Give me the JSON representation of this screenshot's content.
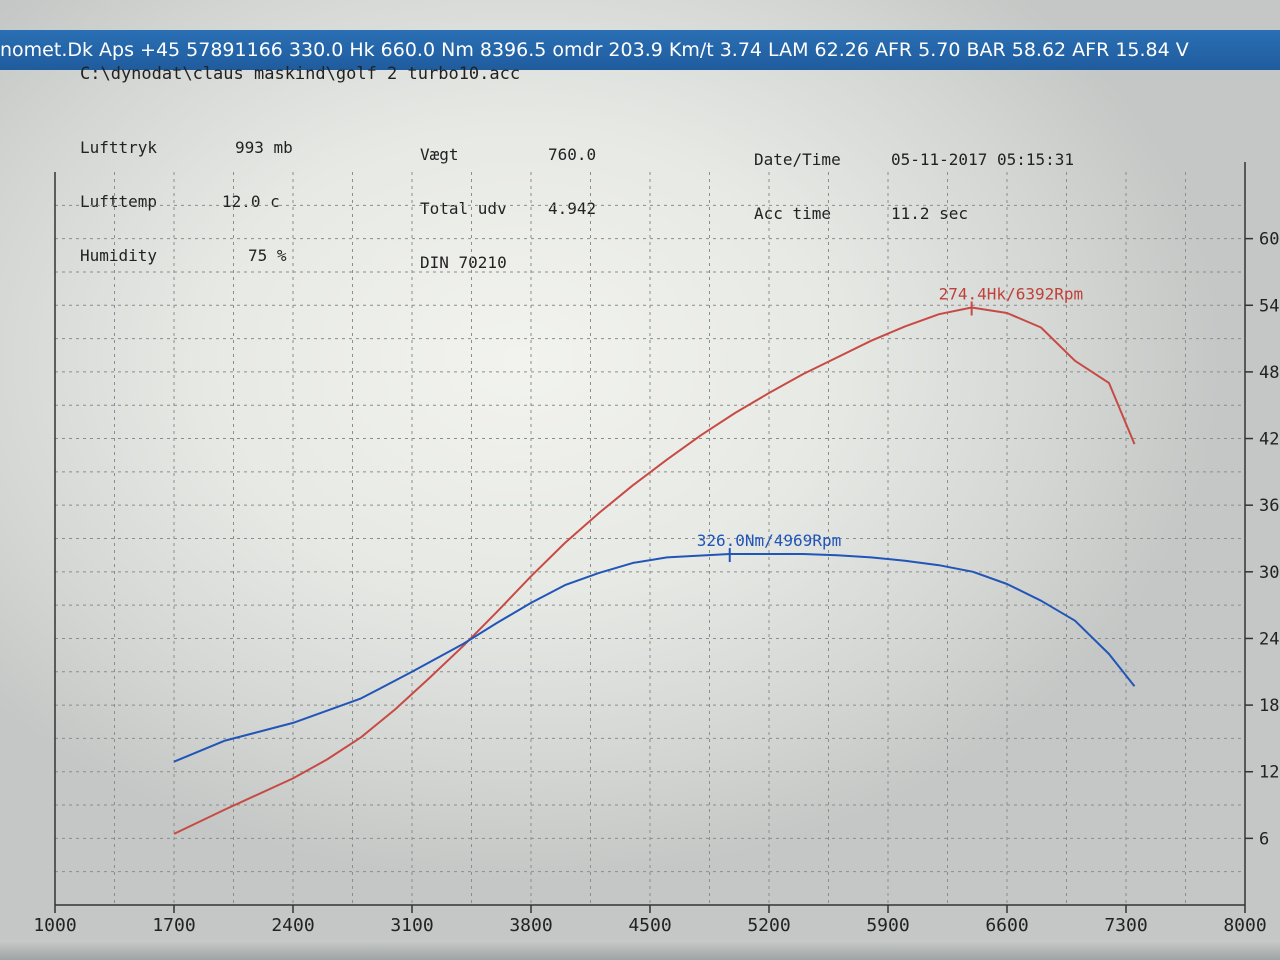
{
  "header": {
    "status_text": "nomet.Dk Aps +45 57891166  330.0 Hk 660.0 Nm 8396.5 omdr 203.9 Km/t   3.74 LAM 62.26 AFR 5.70 BAR 58.62 AFR 15.84 V",
    "file_path": "C:\\dynodat\\claus maskind\\golf 2 turbo10.acc"
  },
  "info": {
    "lufttryk_label": "Lufttryk",
    "lufttryk_value": "993 mb",
    "lufttemp_label": "Lufttemp",
    "lufttemp_value": "12.0 c",
    "humidity_label": "Humidity",
    "humidity_value": "75 %",
    "vaegt_label": "Vægt",
    "vaegt_value": "760.0",
    "total_udv_label": "Total udv",
    "total_udv_value": "4.942",
    "din_text": "DIN 70210",
    "datetime_label": "Date/Time",
    "datetime_value": "05-11-2017 05:15:31",
    "acc_label": "Acc time",
    "acc_value": "11.2 sec"
  },
  "colors": {
    "power": "#c84a44",
    "torque": "#2155b8",
    "grid": "#8a8e8c"
  },
  "chart_data": {
    "type": "line",
    "x_ticks": [
      "1000",
      "1700",
      "2400",
      "3100",
      "3800",
      "4500",
      "5200",
      "5900",
      "6600",
      "7300",
      "8000"
    ],
    "right_ticks": [
      "6",
      "12",
      "18",
      "24",
      "30",
      "36",
      "42",
      "48",
      "54",
      "60"
    ],
    "xlim": [
      1000,
      8000
    ],
    "ylim": [
      0,
      66
    ],
    "grid": true,
    "series": [
      {
        "key": "power",
        "x": [
          1700,
          2000,
          2400,
          2600,
          2800,
          3000,
          3200,
          3400,
          3600,
          3800,
          4000,
          4200,
          4400,
          4600,
          4800,
          5000,
          5200,
          5400,
          5600,
          5800,
          6000,
          6200,
          6392,
          6600,
          6800,
          7000,
          7200,
          7350
        ],
        "y": [
          6.4,
          8.6,
          11.4,
          13.1,
          15.1,
          17.6,
          20.4,
          23.3,
          26.4,
          29.6,
          32.6,
          35.3,
          37.8,
          40.1,
          42.3,
          44.3,
          46.1,
          47.8,
          49.3,
          50.8,
          52.1,
          53.2,
          53.8,
          53.3,
          52.0,
          49.0,
          47.0,
          41.5
        ]
      },
      {
        "key": "torque",
        "x": [
          1700,
          2000,
          2400,
          2800,
          3100,
          3400,
          3600,
          3800,
          4000,
          4200,
          4400,
          4600,
          4969,
          5200,
          5400,
          5600,
          5800,
          6000,
          6200,
          6400,
          6600,
          6800,
          7000,
          7200,
          7350
        ],
        "y": [
          12.9,
          14.8,
          16.4,
          18.6,
          21.0,
          23.5,
          25.4,
          27.2,
          28.8,
          29.9,
          30.8,
          31.3,
          31.6,
          31.6,
          31.6,
          31.5,
          31.3,
          31.0,
          30.6,
          30.0,
          28.9,
          27.4,
          25.6,
          22.6,
          19.7
        ]
      }
    ],
    "annotations": [
      {
        "key": "power",
        "text": "274.4Hk/6392Rpm",
        "x": 6392,
        "y": 53.8
      },
      {
        "key": "torque",
        "text": "326.0Nm/4969Rpm",
        "x": 4969,
        "y": 31.6
      }
    ]
  }
}
